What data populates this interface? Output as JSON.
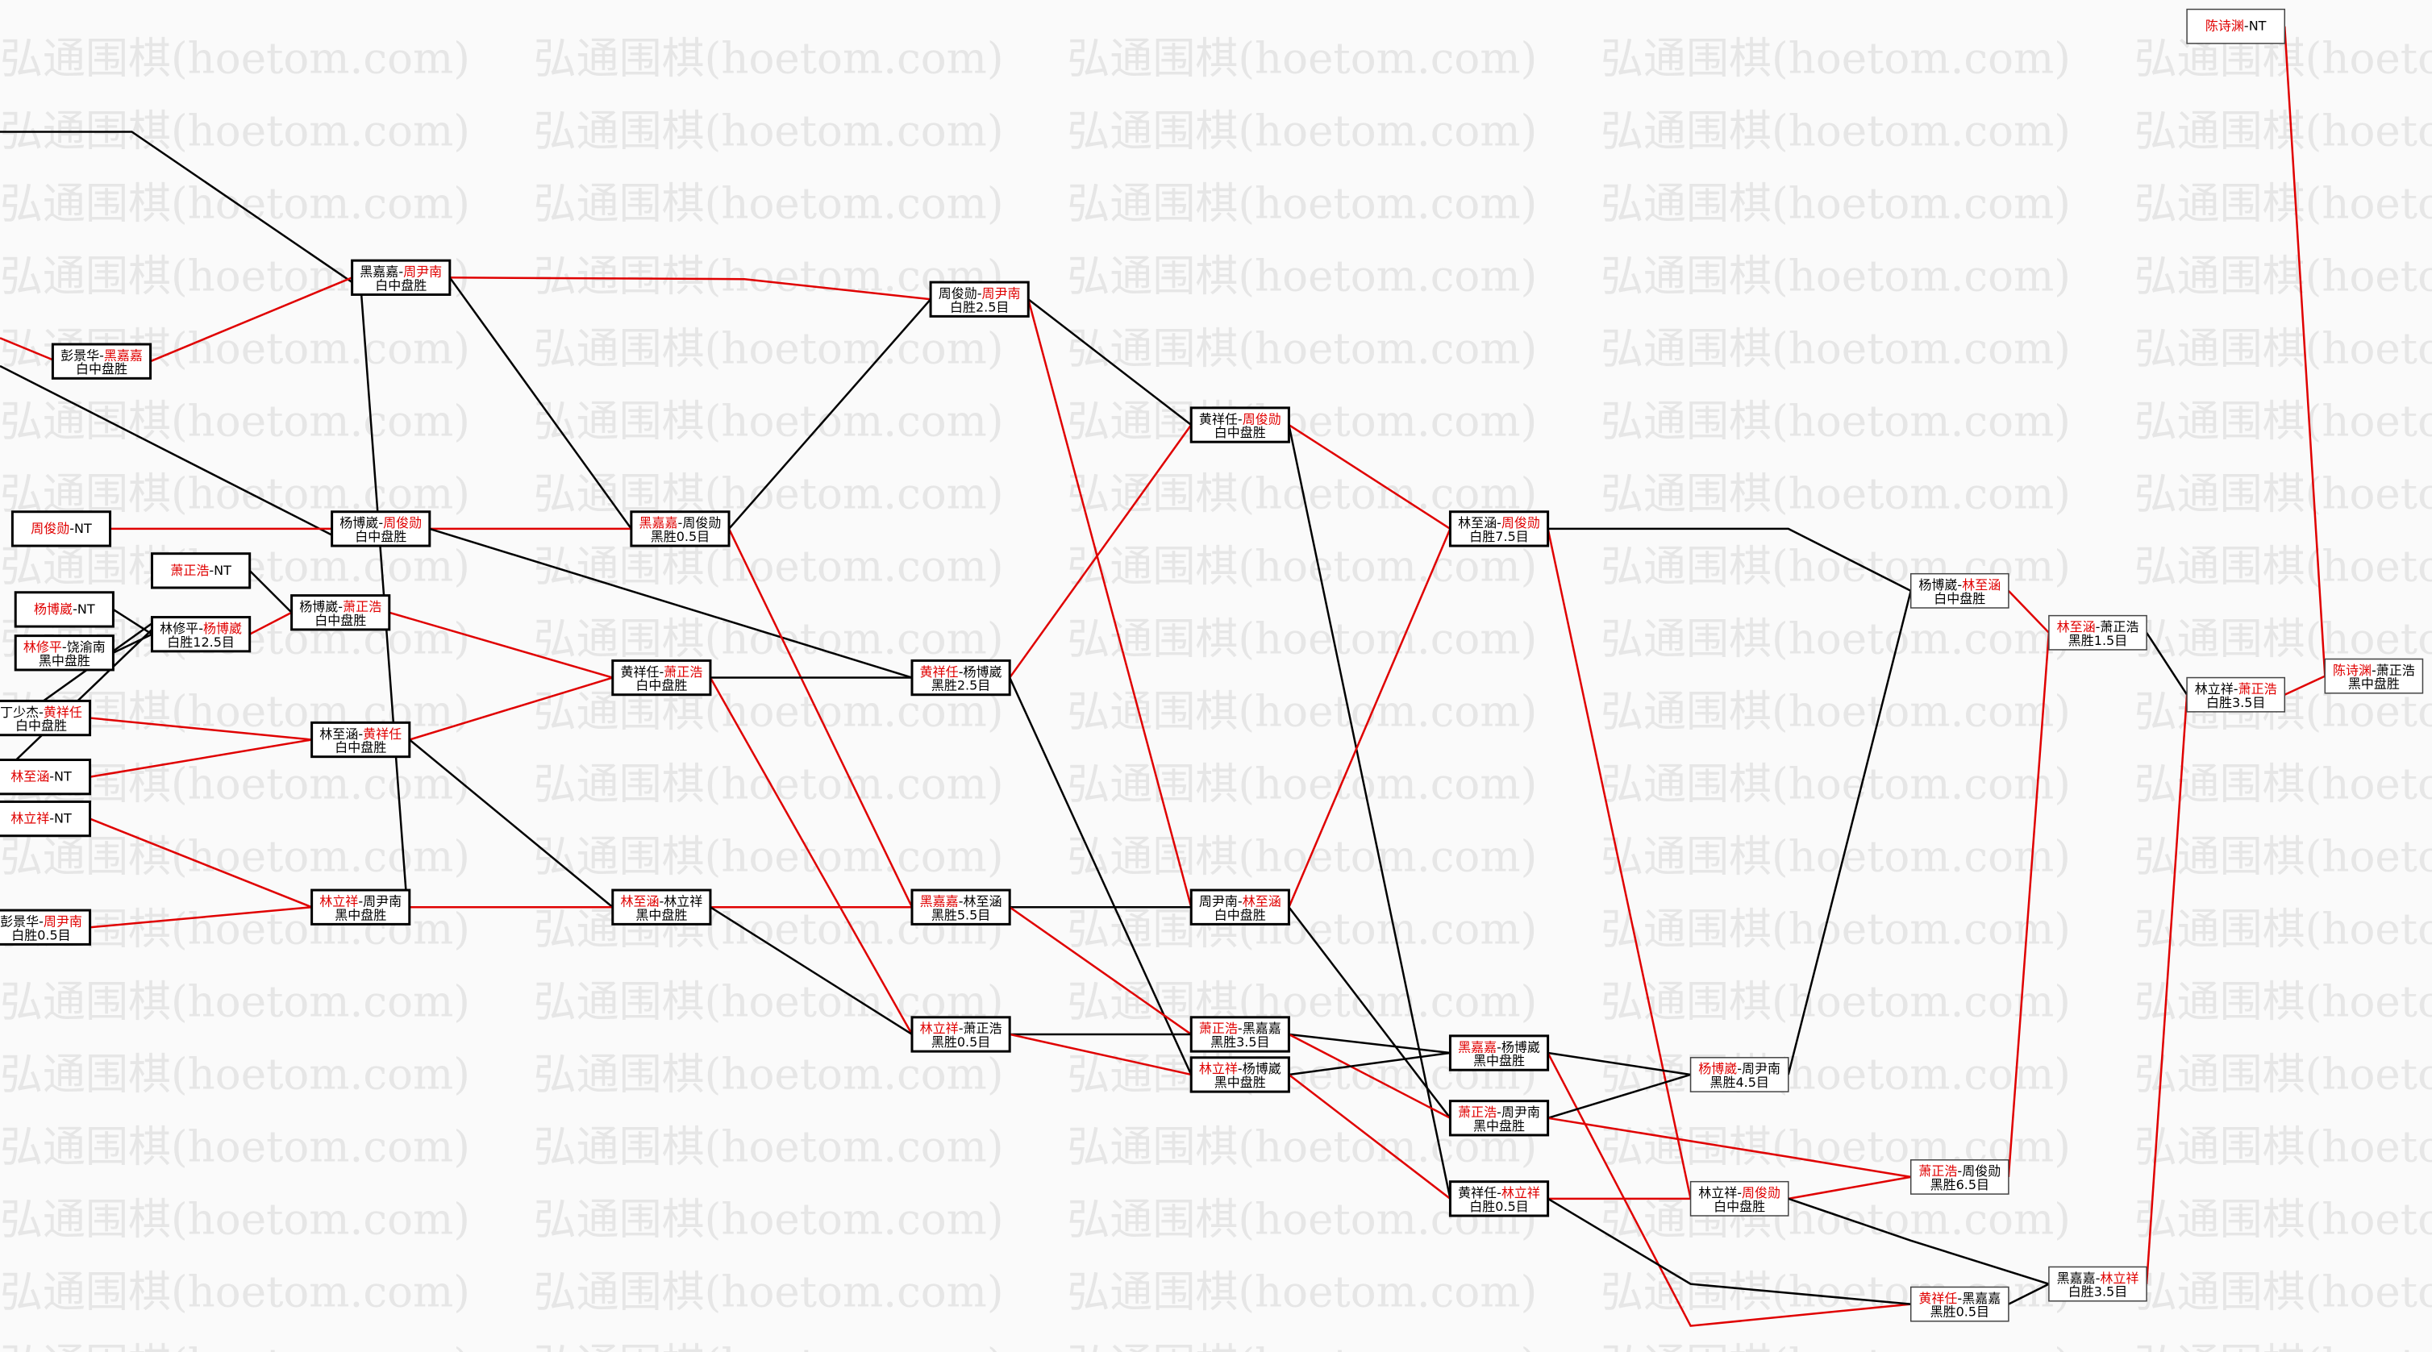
{
  "watermark": "弘通围棋(hoetom.com)",
  "separator": "-",
  "nodes": [
    {
      "players": [
        "彭景华",
        "黑嘉嘉"
      ],
      "result": "白中盘胜",
      "winner": 1
    },
    {
      "players": [
        "黑嘉嘉",
        "周尹南"
      ],
      "result": "白中盘胜",
      "winner": 1
    },
    {
      "players": [
        "周俊勋",
        "NT"
      ],
      "winner": 0
    },
    {
      "players": [
        "杨博崴",
        "周俊勋"
      ],
      "result": "白中盘胜",
      "winner": 1
    },
    {
      "players": [
        "萧正浩",
        "NT"
      ],
      "winner": 0
    },
    {
      "players": [
        "杨博崴",
        "NT"
      ],
      "winner": 0
    },
    {
      "players": [
        "林修平",
        "饶渝南"
      ],
      "result": "黑中盘胜",
      "winner": 0
    },
    {
      "players": [
        "林修平",
        "杨博崴"
      ],
      "result": "白胜12.5目",
      "winner": 1
    },
    {
      "players": [
        "杨博崴",
        "萧正浩"
      ],
      "result": "白中盘胜",
      "winner": 1
    },
    {
      "players": [
        "丁少杰",
        "黄祥任"
      ],
      "result": "白中盘胜",
      "winner": 1
    },
    {
      "players": [
        "林至涵",
        "NT"
      ],
      "winner": 0
    },
    {
      "players": [
        "林至涵",
        "黄祥任"
      ],
      "result": "白中盘胜",
      "winner": 1
    },
    {
      "players": [
        "林立祥",
        "NT"
      ],
      "winner": 0
    },
    {
      "players": [
        "彭景华",
        "周尹南"
      ],
      "result": "白胜0.5目",
      "winner": 1
    },
    {
      "players": [
        "林立祥",
        "周尹南"
      ],
      "result": "黑中盘胜",
      "winner": 0
    },
    {
      "players": [
        "黑嘉嘉",
        "周俊勋"
      ],
      "result": "黑胜0.5目",
      "winner": 0
    },
    {
      "players": [
        "黄祥任",
        "萧正浩"
      ],
      "result": "白中盘胜",
      "winner": 1
    },
    {
      "players": [
        "林至涵",
        "林立祥"
      ],
      "result": "黑中盘胜",
      "winner": 0
    },
    {
      "players": [
        "周俊勋",
        "周尹南"
      ],
      "result": "白胜2.5目",
      "winner": 1
    },
    {
      "players": [
        "黄祥任",
        "杨博崴"
      ],
      "result": "黑胜2.5目",
      "winner": 0
    },
    {
      "players": [
        "黑嘉嘉",
        "林至涵"
      ],
      "result": "黑胜5.5目",
      "winner": 0
    },
    {
      "players": [
        "林立祥",
        "萧正浩"
      ],
      "result": "黑胜0.5目",
      "winner": 0
    },
    {
      "players": [
        "黄祥任",
        "周俊勋"
      ],
      "result": "白中盘胜",
      "winner": 1
    },
    {
      "players": [
        "周尹南",
        "林至涵"
      ],
      "result": "白中盘胜",
      "winner": 1
    },
    {
      "players": [
        "萧正浩",
        "黑嘉嘉"
      ],
      "result": "黑胜3.5目",
      "winner": 0
    },
    {
      "players": [
        "林立祥",
        "杨博崴"
      ],
      "result": "黑中盘胜",
      "winner": 0
    },
    {
      "players": [
        "林至涵",
        "周俊勋"
      ],
      "result": "白胜7.5目",
      "winner": 1
    },
    {
      "players": [
        "黑嘉嘉",
        "杨博崴"
      ],
      "result": "黑中盘胜",
      "winner": 0
    },
    {
      "players": [
        "萧正浩",
        "周尹南"
      ],
      "result": "黑中盘胜",
      "winner": 0
    },
    {
      "players": [
        "黄祥任",
        "林立祥"
      ],
      "result": "白胜0.5目",
      "winner": 1
    },
    {
      "players": [
        "杨博崴",
        "周尹南"
      ],
      "result": "黑胜4.5目",
      "winner": 0
    },
    {
      "players": [
        "林立祥",
        "周俊勋"
      ],
      "result": "白中盘胜",
      "winner": 1
    },
    {
      "players": [
        "杨博崴",
        "林至涵"
      ],
      "result": "白中盘胜",
      "winner": 1
    },
    {
      "players": [
        "萧正浩",
        "周俊勋"
      ],
      "result": "黑胜6.5目",
      "winner": 0
    },
    {
      "players": [
        "黄祥任",
        "黑嘉嘉"
      ],
      "result": "黑胜0.5目",
      "winner": 0
    },
    {
      "players": [
        "林至涵",
        "萧正浩"
      ],
      "result": "黑胜1.5目",
      "winner": 0
    },
    {
      "players": [
        "黑嘉嘉",
        "林立祥"
      ],
      "result": "白胜3.5目",
      "winner": 1
    },
    {
      "players": [
        "林立祥",
        "萧正浩"
      ],
      "result": "白胜3.5目",
      "winner": 1
    },
    {
      "players": [
        "陈诗渊",
        "NT"
      ],
      "winner": 0
    },
    {
      "players": [
        "陈诗渊",
        "萧正浩"
      ],
      "result": "黑中盘胜",
      "winner": 0
    }
  ]
}
